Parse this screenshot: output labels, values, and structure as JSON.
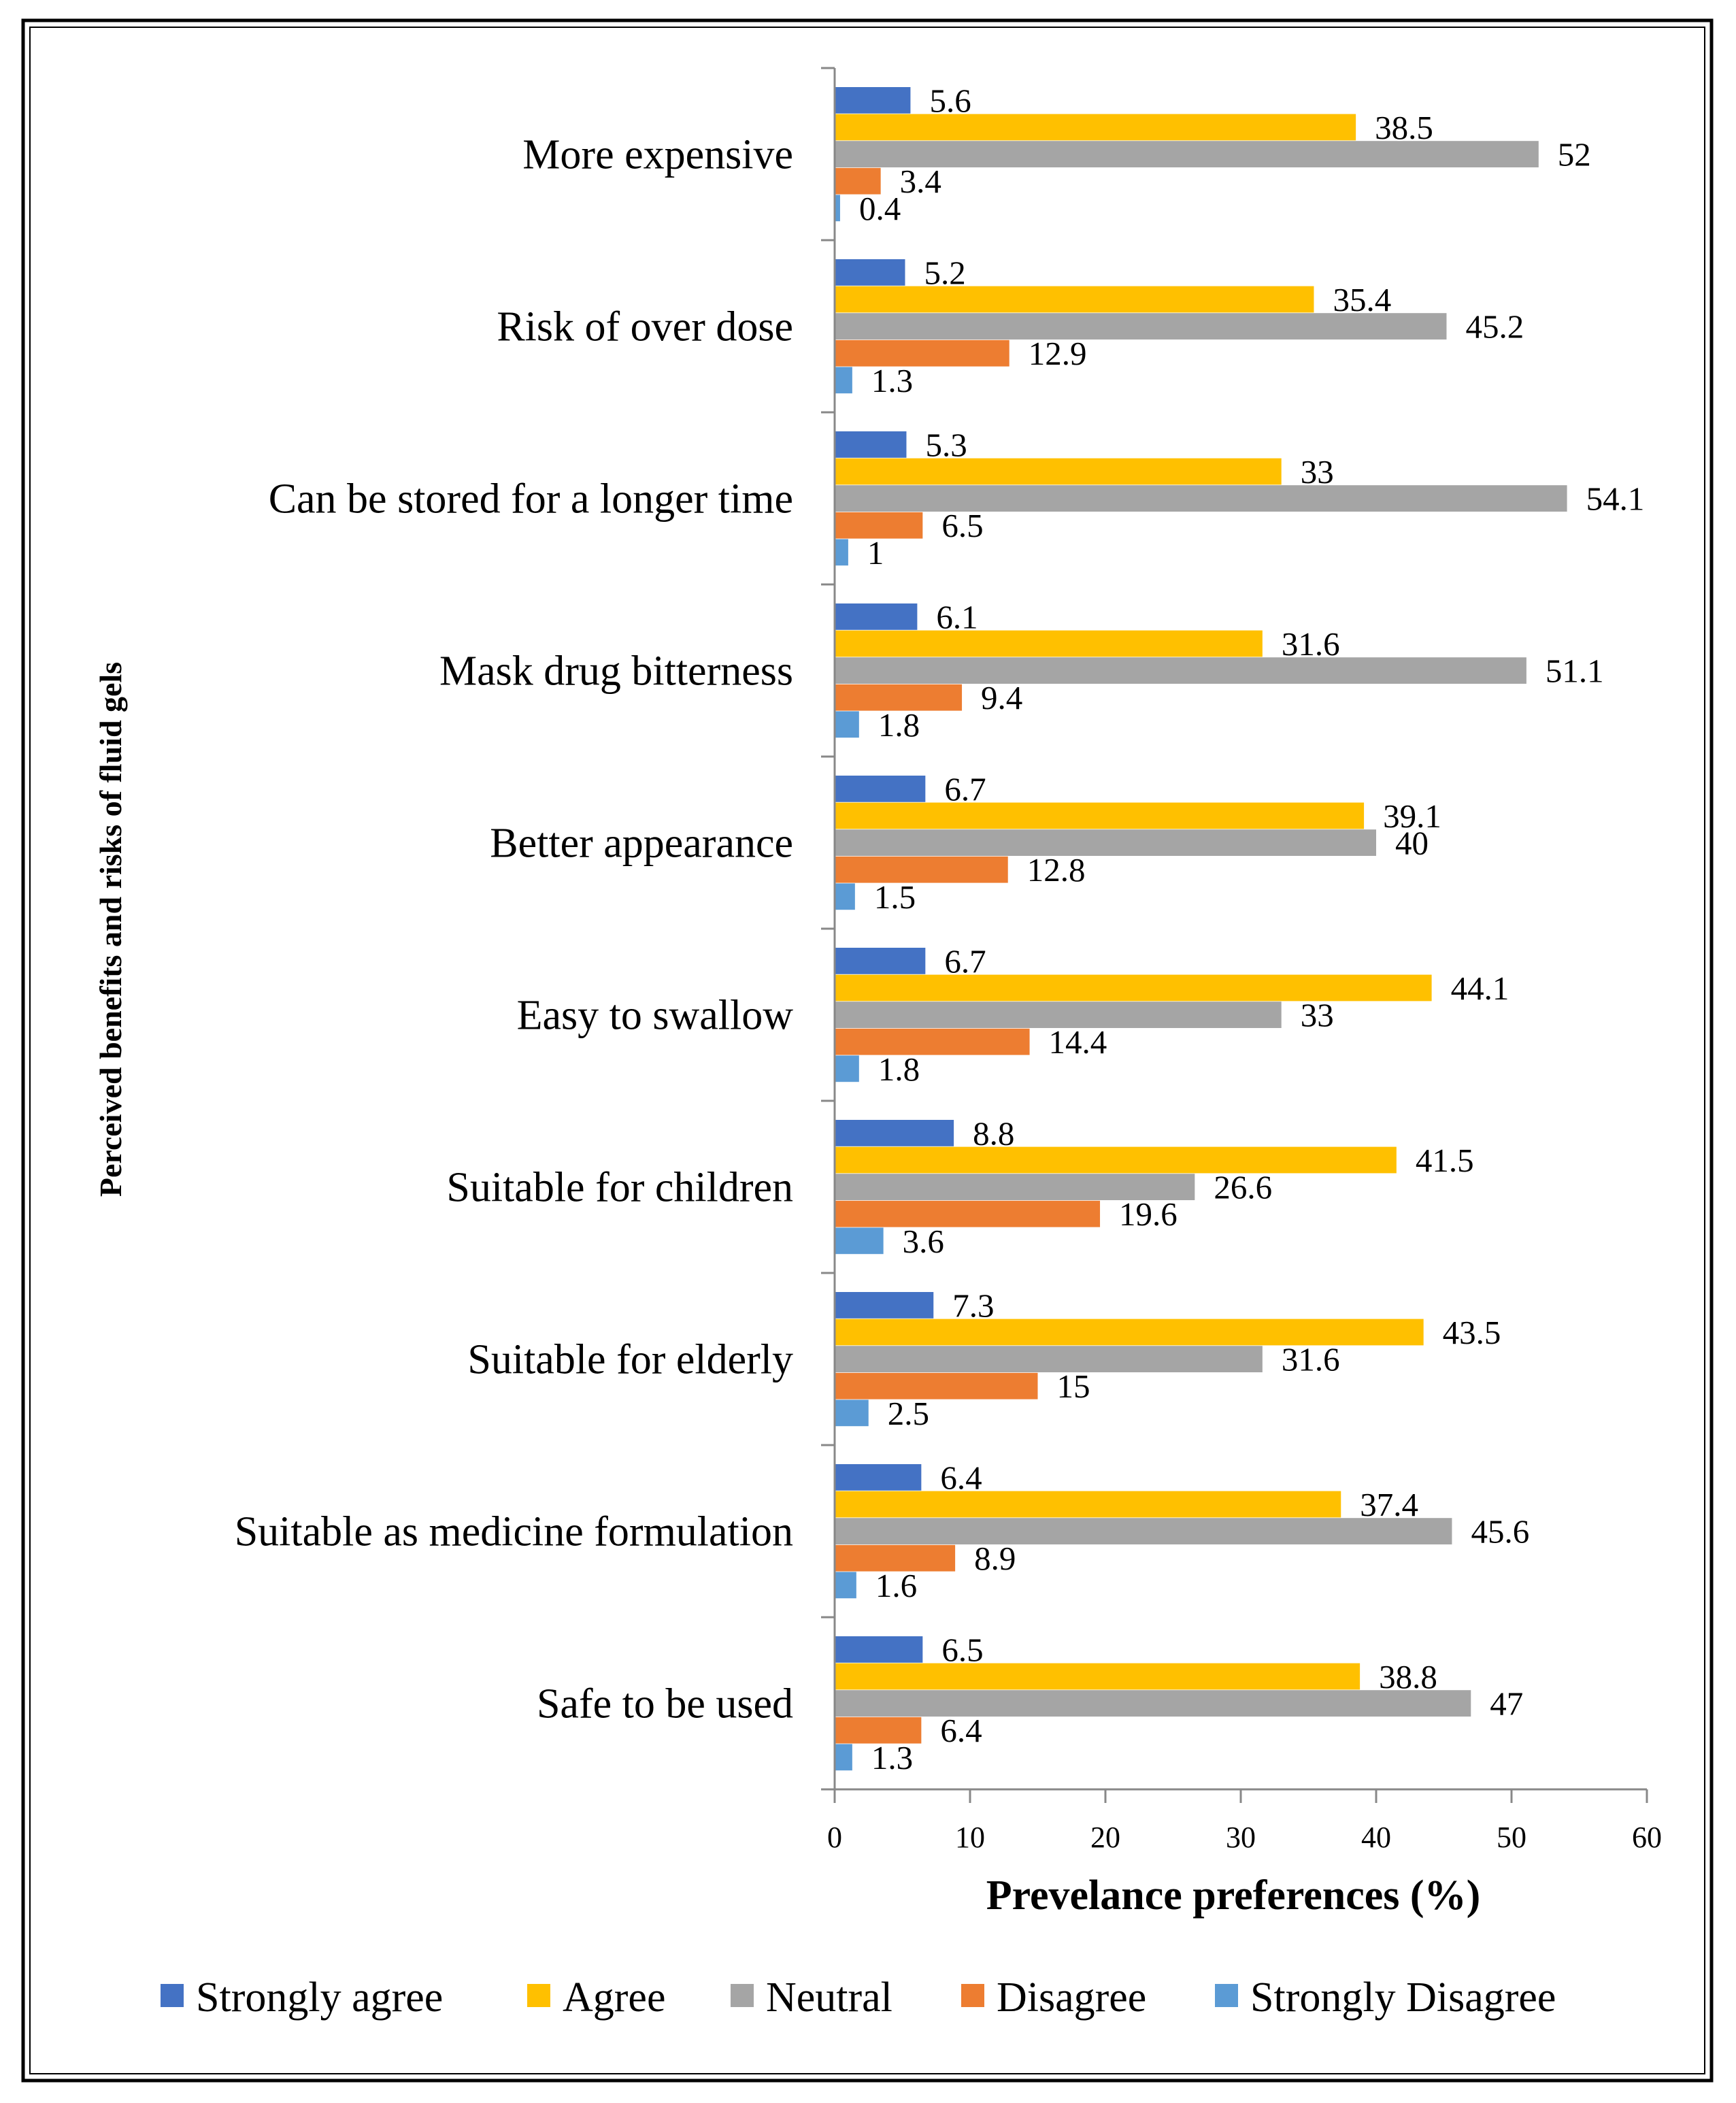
{
  "chart_data": {
    "type": "bar",
    "orientation": "horizontal",
    "categories": [
      "More expensive",
      "Risk of over dose",
      "Can be stored for a longer time",
      "Mask drug bitterness",
      "Better appearance",
      "Easy to swallow",
      "Suitable for children",
      "Suitable for elderly",
      "Suitable as medicine formulation",
      "Safe to be used"
    ],
    "series": [
      {
        "name": "Strongly agree",
        "color": "#4472C4",
        "values": [
          5.6,
          5.2,
          5.3,
          6.1,
          6.7,
          6.7,
          8.8,
          7.3,
          6.4,
          6.5
        ],
        "labels": [
          "5.6",
          "5.2",
          "5.3",
          "6.1",
          "6.7",
          "6.7",
          "8.8",
          "7.3",
          "6.4",
          "6.5"
        ]
      },
      {
        "name": "Agree",
        "color": "#FFC000",
        "values": [
          38.5,
          35.4,
          33,
          31.6,
          39.1,
          44.1,
          41.5,
          43.5,
          37.4,
          38.8
        ],
        "labels": [
          "38.5",
          "35.4",
          "33",
          "31.6",
          "39.1",
          "44.1",
          "41.5",
          "43.5",
          "37.4",
          "38.8"
        ]
      },
      {
        "name": "Neutral",
        "color": "#A5A5A5",
        "values": [
          52,
          45.2,
          54.1,
          51.1,
          40,
          33,
          26.6,
          31.6,
          45.6,
          47
        ],
        "labels": [
          "52",
          "45.2",
          "54.1",
          "51.1",
          "40",
          "33",
          "26.6",
          "31.6",
          "45.6",
          "47"
        ]
      },
      {
        "name": "Disagree",
        "color": "#ED7D31",
        "values": [
          3.4,
          12.9,
          6.5,
          9.4,
          12.8,
          14.4,
          19.6,
          15,
          8.9,
          6.4
        ],
        "labels": [
          "3.4",
          "12.9",
          "6.5",
          "9.4",
          "12.8",
          "14.4",
          "19.6",
          "15",
          "8.9",
          "6.4"
        ]
      },
      {
        "name": "Strongly Disagree",
        "color": "#5B9BD5",
        "values": [
          0.4,
          1.3,
          1,
          1.8,
          1.5,
          1.8,
          3.6,
          2.5,
          1.6,
          1.3
        ],
        "labels": [
          "0.4",
          "1.3",
          "1",
          "1.8",
          "1.5",
          "1.8",
          "3.6",
          "2.5",
          "1.6",
          "1.3"
        ]
      }
    ],
    "xlabel": "Prevelance preferences (%)",
    "ylabel": "Perceived benefits and risks of fluid gels",
    "xlim": [
      0,
      60
    ],
    "xticks": [
      0,
      10,
      20,
      30,
      40,
      50,
      60
    ],
    "xtick_labels": [
      "0",
      "10",
      "20",
      "30",
      "40",
      "50",
      "60"
    ],
    "grid": false,
    "legend_position": "bottom"
  }
}
